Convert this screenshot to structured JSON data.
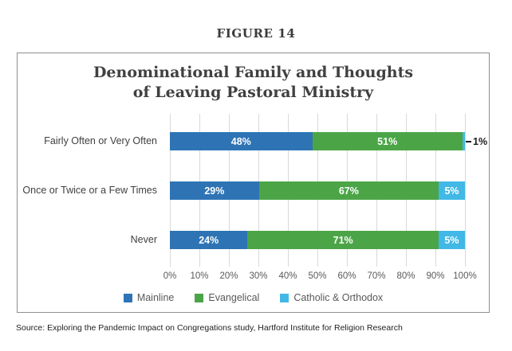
{
  "figure_label": "FIGURE 14",
  "source_note": "Source: Exploring the Pandemic Impact on Congregations study, Hartford Institute for Religion Research",
  "chart_data": {
    "type": "bar",
    "orientation": "horizontal",
    "stacked": true,
    "title": "Denominational Family and Thoughts of Leaving Pastoral Ministry",
    "title_lines": [
      "Denominational Family and Thoughts",
      "of Leaving Pastoral Ministry"
    ],
    "categories": [
      "Fairly Often or Very Often",
      "Once or Twice or a Few Times",
      "Never"
    ],
    "series": [
      {
        "name": "Mainline",
        "color": "#2e74b5",
        "values": [
          48,
          29,
          24
        ],
        "labels": [
          "48%",
          "29%",
          "24%"
        ]
      },
      {
        "name": "Evangelical",
        "color": "#4ba547",
        "values": [
          51,
          67,
          71
        ],
        "labels": [
          "51%",
          "67%",
          "71%"
        ]
      },
      {
        "name": "Catholic & Orthodox",
        "color": "#41b8e5",
        "values": [
          1,
          5,
          5
        ],
        "labels": [
          "1%",
          "5%",
          "5%"
        ]
      }
    ],
    "xlim": [
      0,
      100
    ],
    "x_ticks": [
      "0%",
      "10%",
      "20%",
      "30%",
      "40%",
      "50%",
      "60%",
      "70%",
      "80%",
      "90%",
      "100%"
    ],
    "grid": true,
    "gridline_color": "#d9d9d9",
    "legend_position": "bottom",
    "value_labels": "inside-white, small values called out with leader dash"
  }
}
